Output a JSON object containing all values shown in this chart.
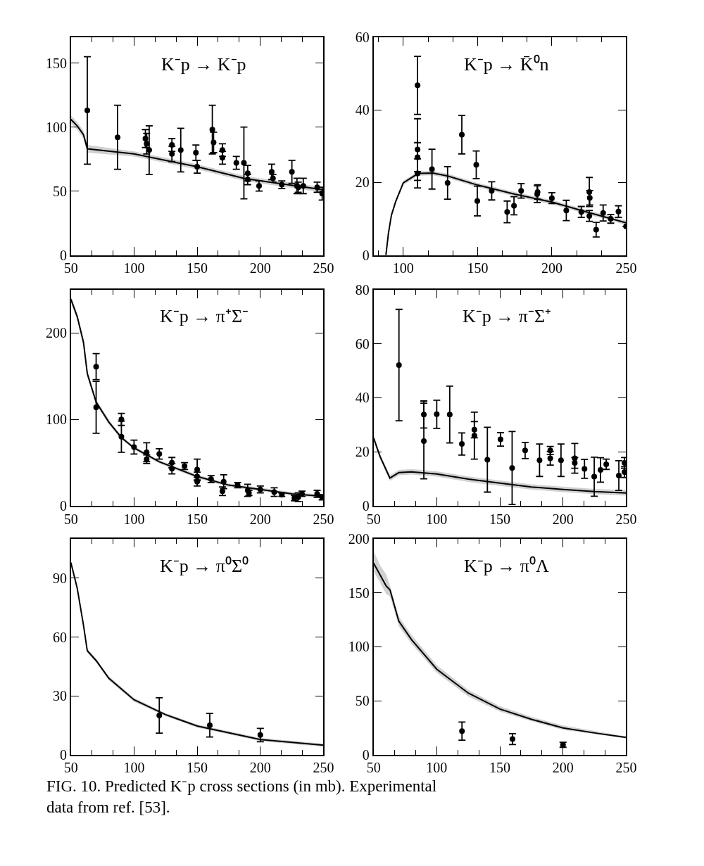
{
  "chart_data": [
    {
      "type": "line",
      "title": "K⁻p → K⁻p",
      "xlim": [
        50,
        250
      ],
      "ylim": [
        0,
        170
      ],
      "xticks": [
        50,
        100,
        150,
        200,
        250
      ],
      "yticks": [
        0,
        50,
        100,
        150
      ],
      "marker": "circle",
      "line_style": "solid",
      "series": [
        {
          "marker": "none",
          "color": "#000000",
          "x": [
            50,
            55,
            60,
            63,
            100,
            150,
            187,
            200,
            250
          ],
          "values": [
            106,
            101,
            94,
            83,
            79,
            69,
            60,
            58,
            51
          ],
          "lower": [
            103,
            98,
            91,
            80,
            77,
            67,
            58,
            56,
            49
          ],
          "upper": [
            109,
            104,
            97,
            86,
            81,
            71,
            62,
            60,
            53
          ]
        },
        {
          "type": "scatter",
          "color": "#000000",
          "x": [
            63,
            87,
            109,
            110,
            112,
            130,
            130,
            137,
            149,
            150,
            162,
            163,
            170,
            170,
            181,
            187,
            190,
            190,
            199,
            209,
            210,
            217,
            225,
            229,
            230,
            234,
            245,
            249
          ],
          "values": [
            113,
            92,
            91,
            87,
            82,
            86,
            79,
            82,
            80,
            69,
            98,
            88,
            82,
            76,
            72,
            72,
            64,
            59,
            54,
            65,
            60,
            55,
            65,
            54,
            53,
            54,
            53,
            48
          ],
          "errors": [
            42,
            25,
            7,
            8,
            19,
            5,
            6,
            17,
            6,
            5,
            19,
            8,
            5,
            5,
            5,
            28,
            6,
            4,
            4,
            6,
            3,
            3,
            9,
            6,
            4,
            6,
            4,
            5
          ]
        }
      ]
    },
    {
      "type": "line",
      "title": "K⁻p → K̄⁰n",
      "xlim": [
        80,
        250
      ],
      "ylim": [
        0,
        60
      ],
      "xticks": [
        100,
        150,
        200,
        250
      ],
      "yticks": [
        0,
        20,
        40,
        60
      ],
      "marker": "circle",
      "line_style": "solid",
      "series": [
        {
          "marker": "none",
          "color": "#000000",
          "x": [
            88.3,
            90,
            92,
            95,
            100,
            110,
            120,
            130,
            150,
            175,
            200,
            225,
            250
          ],
          "values": [
            0,
            6,
            11,
            14.9,
            19.9,
            22.5,
            22.6,
            21.8,
            19.3,
            16.8,
            14.6,
            11.7,
            8.9
          ],
          "lower": [
            0,
            5.4,
            10.4,
            14.3,
            19.3,
            21.9,
            22,
            21.2,
            18.7,
            16.2,
            14,
            11.1,
            8.3
          ],
          "upper": [
            0,
            6.6,
            11.6,
            15.5,
            20.5,
            23.1,
            23.2,
            22.4,
            19.9,
            17.4,
            15.2,
            12.3,
            9.5
          ]
        },
        {
          "type": "scatter",
          "color": "#000000",
          "x": [
            109.6,
            109.6,
            109.6,
            109.6,
            119.3,
            129.8,
            139.4,
            149.1,
            149.8,
            159.5,
            169.9,
            174.5,
            179.3,
            190.1,
            190.4,
            200,
            209.7,
            219.8,
            225.2,
            225.5,
            225.2,
            229.8,
            234.5,
            239.6,
            244.8,
            249.9
          ],
          "values": [
            46.8,
            29.1,
            27,
            22.5,
            23.7,
            19.9,
            33.2,
            24.9,
            14.9,
            17.7,
            11.9,
            13.6,
            17.7,
            16.8,
            17.4,
            15.7,
            12.3,
            11.9,
            17.4,
            15.8,
            10.8,
            7,
            11.6,
            10,
            12,
            7.9
          ],
          "errors": [
            8,
            8.5,
            4,
            4,
            5.5,
            4.5,
            5.3,
            3.8,
            4.1,
            2.5,
            3,
            2.5,
            2,
            2.3,
            2,
            1.5,
            2.8,
            1.5,
            4,
            2,
            1.5,
            2,
            2.2,
            1.2,
            1.6,
            null
          ]
        }
      ]
    },
    {
      "type": "line",
      "title": "K⁻p → π⁺Σ⁻",
      "xlim": [
        50,
        250
      ],
      "ylim": [
        0,
        250
      ],
      "xticks": [
        50,
        100,
        150,
        200,
        250
      ],
      "yticks": [
        0,
        100,
        200
      ],
      "marker": "circle",
      "line_style": "solid",
      "series": [
        {
          "marker": "none",
          "color": "#000000",
          "x": [
            50,
            55,
            60,
            63,
            70,
            80,
            90,
            100,
            120,
            150,
            175,
            200,
            225,
            250
          ],
          "values": [
            239,
            219,
            189,
            153,
            120,
            97,
            79,
            67,
            51,
            34,
            24,
            19,
            14,
            11
          ],
          "lower": [
            235,
            215,
            185,
            149,
            117,
            94,
            77,
            65,
            49,
            32,
            22,
            17,
            12,
            9
          ],
          "upper": [
            243,
            223,
            193,
            157,
            123,
            100,
            81,
            69,
            53,
            36,
            26,
            21,
            16,
            13
          ]
        },
        {
          "type": "scatter",
          "color": "#000000",
          "x": [
            70,
            70,
            90,
            90,
            100,
            110,
            110,
            120,
            130,
            130,
            140,
            150,
            150,
            150,
            161,
            171,
            170,
            182,
            190,
            191,
            200,
            211,
            217,
            227,
            230,
            233,
            245,
            249
          ],
          "values": [
            161,
            114,
            100,
            80,
            68,
            62,
            54,
            60,
            50,
            43,
            46,
            42,
            34,
            28,
            31,
            28,
            17,
            24,
            18,
            15,
            19,
            16,
            13,
            9,
            10,
            14,
            14,
            10
          ],
          "errors": [
            15,
            30,
            7,
            18,
            8,
            11,
            5,
            6,
            6,
            6,
            4,
            12,
            5,
            5,
            4,
            8,
            5,
            3,
            7,
            3,
            4,
            5,
            2,
            3,
            5,
            3,
            4,
            3
          ]
        }
      ]
    },
    {
      "type": "line",
      "title": "K⁻p → π⁻Σ⁺",
      "xlim": [
        50,
        250
      ],
      "ylim": [
        0,
        80
      ],
      "xticks": [
        50,
        100,
        150,
        200,
        250
      ],
      "yticks": [
        0,
        20,
        40,
        60,
        80
      ],
      "marker": "circle",
      "line_style": "solid",
      "series": [
        {
          "marker": "none",
          "color": "#000000",
          "x": [
            50,
            55,
            62.9,
            70,
            80,
            100,
            125,
            150,
            175,
            200,
            225,
            250
          ],
          "values": [
            25.2,
            18.4,
            10.3,
            12.3,
            12.6,
            11.8,
            9.9,
            8.4,
            7,
            6.1,
            5.3,
            4.8
          ],
          "lower": [
            24.2,
            17.4,
            9.3,
            11.3,
            11.6,
            10.8,
            8.9,
            7.4,
            6,
            5.1,
            4.3,
            3.8
          ],
          "upper": [
            26.2,
            19.4,
            11.3,
            13.3,
            13.6,
            12.8,
            10.9,
            9.4,
            8,
            7.1,
            6.3,
            5.8
          ]
        },
        {
          "type": "scatter",
          "color": "#000000",
          "x": [
            70.1,
            89.8,
            89.8,
            100,
            110.3,
            119.9,
            129.8,
            129.8,
            140.1,
            150.5,
            159.7,
            170,
            181.4,
            189.9,
            189.9,
            198.4,
            209.3,
            209.3,
            217,
            224.7,
            229.7,
            234.2,
            244.2,
            248.7,
            248.7
          ],
          "values": [
            52.1,
            33.8,
            24,
            33.9,
            33.8,
            22.9,
            26,
            28.2,
            17.1,
            24.6,
            14,
            20.5,
            16.9,
            20.5,
            17.6,
            16.9,
            17.6,
            15.9,
            13.7,
            10.8,
            13.3,
            15.4,
            11.2,
            15.9,
            12.5
          ],
          "errors": [
            20.6,
            5,
            14,
            5.2,
            10.5,
            4.1,
            8.7,
            3,
            12,
            2.5,
            13.5,
            3,
            6,
            1.5,
            2.5,
            6,
            5.5,
            2,
            3.5,
            7.2,
            4.5,
            1.9,
            5.5,
            2,
            2
          ]
        }
      ]
    },
    {
      "type": "line",
      "title": "K⁻p → π⁰Σ⁰",
      "xlim": [
        50,
        250
      ],
      "ylim": [
        0,
        110
      ],
      "xticks": [
        50,
        100,
        150,
        200,
        250
      ],
      "yticks": [
        0,
        30,
        60,
        90
      ],
      "marker": "circle",
      "line_style": "solid",
      "series": [
        {
          "marker": "none",
          "color": "#000000",
          "x": [
            50,
            55,
            60,
            63,
            70,
            80,
            100,
            125,
            150,
            200,
            250
          ],
          "values": [
            98,
            85,
            66,
            53,
            48,
            39,
            28,
            20.4,
            14.6,
            7.7,
            4.8
          ],
          "lower": [
            97,
            84,
            65,
            52,
            47,
            38,
            27,
            19.6,
            13.8,
            6.9,
            4
          ],
          "upper": [
            99,
            86,
            67,
            54,
            49,
            40,
            29,
            21.2,
            15.4,
            8.5,
            5.6
          ]
        },
        {
          "type": "scatter",
          "color": "#000000",
          "x": [
            120,
            160,
            200
          ],
          "values": [
            20,
            15,
            10
          ],
          "errors": [
            9,
            6,
            3.4
          ]
        }
      ]
    },
    {
      "type": "line",
      "title": "K⁻p → π⁰Λ",
      "xlim": [
        50,
        250
      ],
      "ylim": [
        0,
        200
      ],
      "xticks": [
        50,
        100,
        150,
        200,
        250
      ],
      "yticks": [
        0,
        50,
        100,
        150,
        200
      ],
      "marker": "circle",
      "line_style": "solid",
      "annotations": [
        "FIG. 10. Predicted K⁻p cross sections (in mb). Experimental data from ref. [53]."
      ],
      "series": [
        {
          "marker": "none",
          "color": "#000000",
          "x": [
            50,
            55,
            60,
            63,
            70,
            80,
            100,
            125,
            150,
            175,
            200,
            225,
            250
          ],
          "values": [
            177.6,
            167,
            156.4,
            152.9,
            123.7,
            106.8,
            79.3,
            57.1,
            42.3,
            32.8,
            24.7,
            20.1,
            15.9
          ],
          "lower": [
            170,
            160,
            149,
            147,
            119,
            103,
            76,
            54,
            40,
            31,
            23,
            19,
            15
          ],
          "upper": [
            189,
            176,
            167,
            157,
            128,
            111,
            83,
            60,
            45,
            35,
            27,
            22,
            17
          ]
        },
        {
          "type": "scatter",
          "color": "#000000",
          "x": [
            120,
            160,
            200
          ],
          "values": [
            21.8,
            14.4,
            9.1
          ],
          "errors": [
            8.4,
            5,
            2.3
          ]
        }
      ]
    }
  ]
}
